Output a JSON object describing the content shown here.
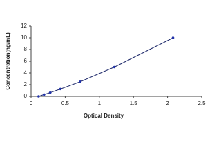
{
  "chart_data": {
    "type": "line",
    "xlabel": "Optical Density",
    "ylabel": "Concentration(ng/mL)",
    "x": [
      0.11,
      0.19,
      0.28,
      0.43,
      0.72,
      1.22,
      2.08
    ],
    "values": [
      0,
      0.31,
      0.63,
      1.25,
      2.5,
      5,
      10
    ],
    "color": "#1f2a6b",
    "marker_color": "#2233aa",
    "xlim": [
      0,
      2.5
    ],
    "xticks": [
      0,
      0.5,
      1,
      1.5,
      2,
      2.5
    ],
    "ylim": [
      0,
      12
    ],
    "yticks": [
      0,
      2,
      4,
      6,
      8,
      10,
      12
    ],
    "grid": false
  }
}
